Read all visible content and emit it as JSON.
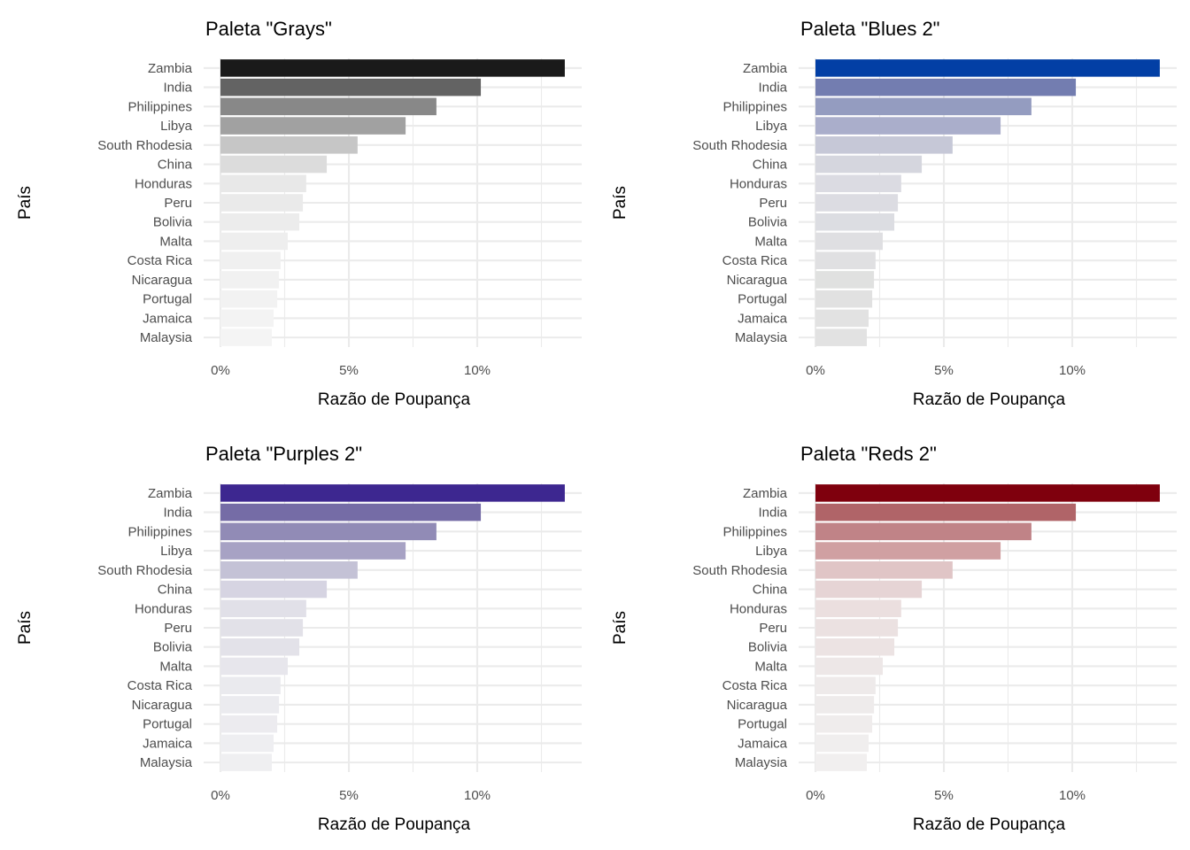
{
  "chart_data": [
    {
      "type": "bar",
      "orientation": "horizontal",
      "title": "Paleta \"Grays\"",
      "xlabel": "Razão de Poupança",
      "ylabel": "País",
      "categories": [
        "Zambia",
        "India",
        "Philippines",
        "Libya",
        "South Rhodesia",
        "China",
        "Honduras",
        "Peru",
        "Bolivia",
        "Malta",
        "Costa Rica",
        "Nicaragua",
        "Portugal",
        "Jamaica",
        "Malaysia"
      ],
      "values": [
        13.41,
        10.14,
        8.41,
        7.21,
        5.34,
        4.14,
        3.34,
        3.21,
        3.07,
        2.62,
        2.34,
        2.28,
        2.21,
        2.07,
        2.0
      ],
      "xticks": [
        "0%",
        "5%",
        "10%"
      ],
      "xlim": [
        0,
        14
      ],
      "grid": true,
      "colors": [
        "#1a1a1a",
        "#636363",
        "#888888",
        "#a1a1a1",
        "#c6c6c6",
        "#dcdcdc",
        "#e8e8e8",
        "#eaeaea",
        "#ececec",
        "#eeeeee",
        "#f0f0f0",
        "#f1f1f1",
        "#f2f2f2",
        "#f3f3f3",
        "#f4f4f4"
      ]
    },
    {
      "type": "bar",
      "orientation": "horizontal",
      "title": "Paleta \"Blues 2\"",
      "xlabel": "Razão de Poupança",
      "ylabel": "País",
      "categories": [
        "Zambia",
        "India",
        "Philippines",
        "Libya",
        "South Rhodesia",
        "China",
        "Honduras",
        "Peru",
        "Bolivia",
        "Malta",
        "Costa Rica",
        "Nicaragua",
        "Portugal",
        "Jamaica",
        "Malaysia"
      ],
      "values": [
        13.41,
        10.14,
        8.41,
        7.21,
        5.34,
        4.14,
        3.34,
        3.21,
        3.07,
        2.62,
        2.34,
        2.28,
        2.21,
        2.07,
        2.0
      ],
      "xticks": [
        "0%",
        "5%",
        "10%"
      ],
      "xlim": [
        0,
        14
      ],
      "grid": true,
      "colors": [
        "#023fa5",
        "#737db0",
        "#949cc0",
        "#aaaecb",
        "#c6c8d7",
        "#d5d6de",
        "#dbdbe2",
        "#dcdce2",
        "#dcdde2",
        "#dfdfe2",
        "#e0e0e2",
        "#e0e1e0",
        "#e1e1e1",
        "#e2e2e2",
        "#e2e2e2"
      ]
    },
    {
      "type": "bar",
      "orientation": "horizontal",
      "title": "Paleta \"Purples 2\"",
      "xlabel": "Razão de Poupança",
      "ylabel": "País",
      "categories": [
        "Zambia",
        "India",
        "Philippines",
        "Libya",
        "South Rhodesia",
        "China",
        "Honduras",
        "Peru",
        "Bolivia",
        "Malta",
        "Costa Rica",
        "Nicaragua",
        "Portugal",
        "Jamaica",
        "Malaysia"
      ],
      "values": [
        13.41,
        10.14,
        8.41,
        7.21,
        5.34,
        4.14,
        3.34,
        3.21,
        3.07,
        2.62,
        2.34,
        2.28,
        2.21,
        2.07,
        2.0
      ],
      "xticks": [
        "0%",
        "5%",
        "10%"
      ],
      "xlim": [
        0,
        14
      ],
      "grid": true,
      "colors": [
        "#3d2790",
        "#756ca6",
        "#918bb6",
        "#a7a2c4",
        "#c4c2d6",
        "#d6d4e2",
        "#e1e0e8",
        "#e2e1e8",
        "#e3e2e9",
        "#e7e6ec",
        "#eaeaee",
        "#ebebef",
        "#ecebef",
        "#eeeef1",
        "#efeff1"
      ]
    },
    {
      "type": "bar",
      "orientation": "horizontal",
      "title": "Paleta \"Reds 2\"",
      "xlabel": "Razão de Poupança",
      "ylabel": "País",
      "categories": [
        "Zambia",
        "India",
        "Philippines",
        "Libya",
        "South Rhodesia",
        "China",
        "Honduras",
        "Peru",
        "Bolivia",
        "Malta",
        "Costa Rica",
        "Nicaragua",
        "Portugal",
        "Jamaica",
        "Malaysia"
      ],
      "values": [
        13.41,
        10.14,
        8.41,
        7.21,
        5.34,
        4.14,
        3.34,
        3.21,
        3.07,
        2.62,
        2.34,
        2.28,
        2.21,
        2.07,
        2.0
      ],
      "xticks": [
        "0%",
        "5%",
        "10%"
      ],
      "xlim": [
        0,
        14
      ],
      "grid": true,
      "colors": [
        "#7f000d",
        "#b06468",
        "#c08387",
        "#d0a0a2",
        "#e0c5c6",
        "#e6d4d5",
        "#ebdfdf",
        "#ebe1e1",
        "#ece3e3",
        "#ede7e7",
        "#eeeaea",
        "#eeebeb",
        "#efecec",
        "#f0eeee",
        "#f1efef"
      ]
    }
  ]
}
